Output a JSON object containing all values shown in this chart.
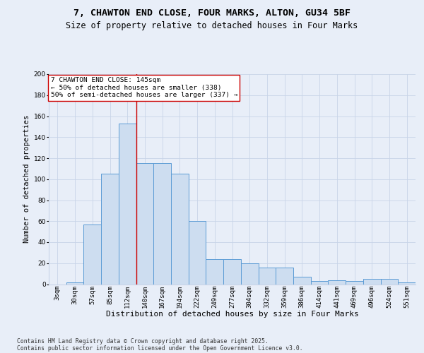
{
  "title": "7, CHAWTON END CLOSE, FOUR MARKS, ALTON, GU34 5BF",
  "subtitle": "Size of property relative to detached houses in Four Marks",
  "xlabel": "Distribution of detached houses by size in Four Marks",
  "ylabel": "Number of detached properties",
  "categories": [
    "3sqm",
    "30sqm",
    "57sqm",
    "85sqm",
    "112sqm",
    "140sqm",
    "167sqm",
    "194sqm",
    "222sqm",
    "249sqm",
    "277sqm",
    "304sqm",
    "332sqm",
    "359sqm",
    "386sqm",
    "414sqm",
    "441sqm",
    "469sqm",
    "496sqm",
    "524sqm",
    "551sqm"
  ],
  "bar_values": [
    0,
    2,
    57,
    105,
    153,
    115,
    115,
    105,
    60,
    24,
    24,
    20,
    16,
    16,
    7,
    3,
    4,
    3,
    5,
    5,
    2
  ],
  "bar_color": "#cdddf0",
  "bar_edge_color": "#5b9bd5",
  "bar_width": 1.0,
  "grid_color": "#c8d4e8",
  "background_color": "#e8eef8",
  "annotation_box_color": "#ffffff",
  "annotation_border_color": "#cc0000",
  "vertical_line_color": "#cc0000",
  "vertical_line_x": 4.5,
  "annotation_text_line1": "7 CHAWTON END CLOSE: 145sqm",
  "annotation_text_line2": "← 50% of detached houses are smaller (338)",
  "annotation_text_line3": "50% of semi-detached houses are larger (337) →",
  "footer_line1": "Contains HM Land Registry data © Crown copyright and database right 2025.",
  "footer_line2": "Contains public sector information licensed under the Open Government Licence v3.0.",
  "ylim": [
    0,
    200
  ],
  "yticks": [
    0,
    20,
    40,
    60,
    80,
    100,
    120,
    140,
    160,
    180,
    200
  ],
  "title_fontsize": 9.5,
  "subtitle_fontsize": 8.5,
  "xlabel_fontsize": 8,
  "ylabel_fontsize": 7.5,
  "tick_fontsize": 6.5,
  "annotation_fontsize": 6.8,
  "footer_fontsize": 5.8
}
